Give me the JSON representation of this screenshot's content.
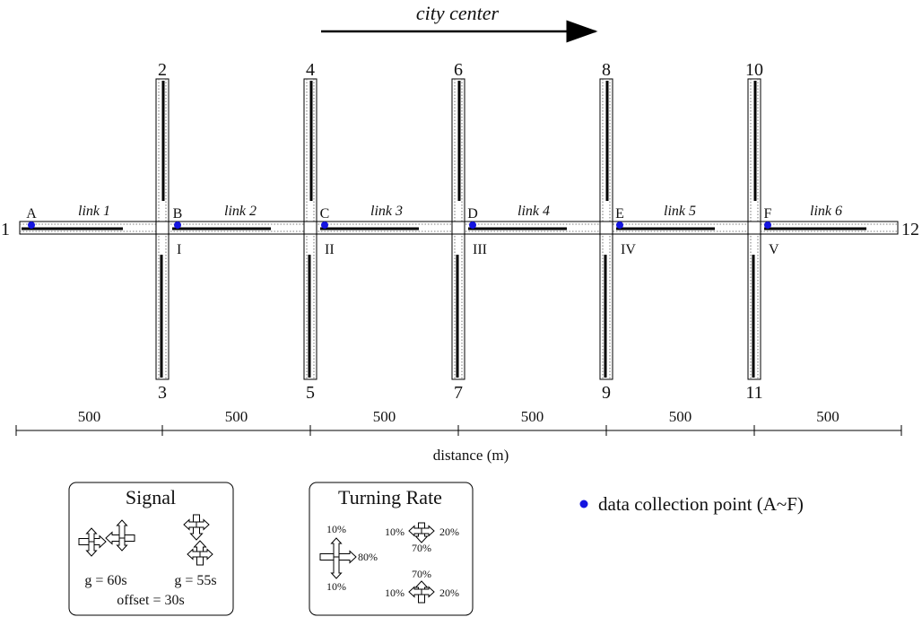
{
  "header": {
    "direction_label": "city center"
  },
  "node_numbers": [
    "1",
    "2",
    "3",
    "4",
    "5",
    "6",
    "7",
    "8",
    "9",
    "10",
    "11",
    "12"
  ],
  "intersections": [
    "I",
    "II",
    "III",
    "IV",
    "V"
  ],
  "links": [
    "link 1",
    "link 2",
    "link 3",
    "link 4",
    "link 5",
    "link 6"
  ],
  "collection_points": [
    "A",
    "B",
    "C",
    "D",
    "E",
    "F"
  ],
  "distance_axis": {
    "segments": [
      "500",
      "500",
      "500",
      "500",
      "500",
      "500"
    ],
    "label": "distance (m)"
  },
  "signal_box": {
    "title": "Signal",
    "phase1_green": "g = 60s",
    "phase2_green": "g = 55s",
    "offset": "offset = 30s"
  },
  "turning_box": {
    "title": "Turning Rate",
    "ew_left": "10%",
    "ew_through": "80%",
    "ew_right": "10%",
    "ns_south_left": "10%",
    "ns_south_through": "70%",
    "ns_south_right": "20%",
    "ns_north_through": "70%",
    "ns_north_left": "10%",
    "ns_north_right": "20%"
  },
  "legend": {
    "text": "data collection point (A~F)",
    "dot_color": "#1515e0"
  },
  "colors": {
    "road_line": "#000000",
    "collection_dot": "#1515e0"
  }
}
